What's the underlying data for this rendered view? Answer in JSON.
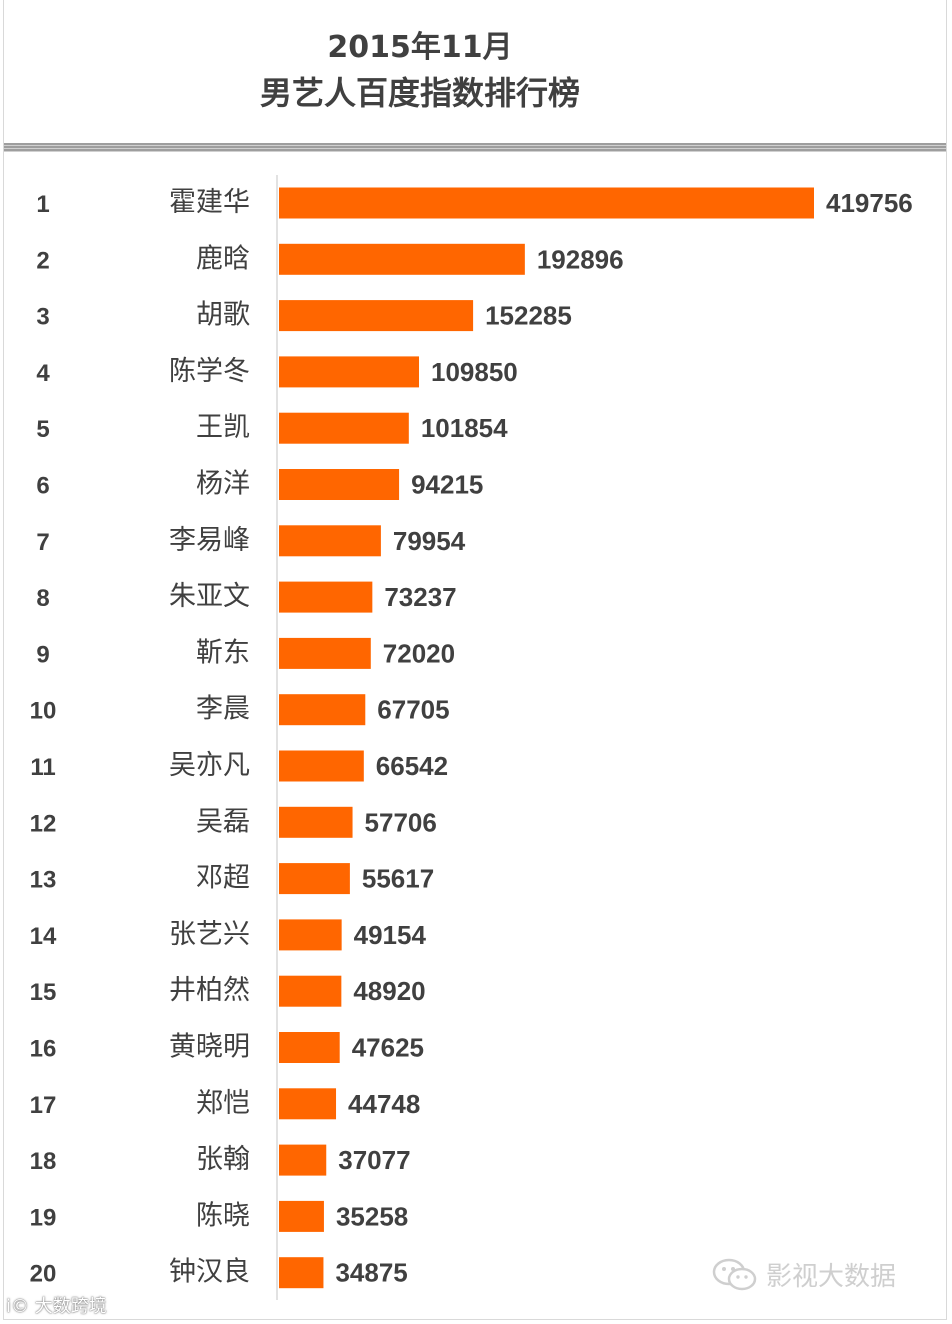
{
  "chart_data": {
    "type": "bar",
    "orientation": "horizontal",
    "title": "2015年11月",
    "subtitle": "男艺人百度指数排行榜",
    "ranks": [
      "1",
      "2",
      "3",
      "4",
      "5",
      "6",
      "7",
      "8",
      "9",
      "10",
      "11",
      "12",
      "13",
      "14",
      "15",
      "16",
      "17",
      "18",
      "19",
      "20"
    ],
    "categories": [
      "霍建华",
      "鹿晗",
      "胡歌",
      "陈学冬",
      "王凯",
      "杨洋",
      "李易峰",
      "朱亚文",
      "靳东",
      "李晨",
      "吴亦凡",
      "吴磊",
      "邓超",
      "张艺兴",
      "井柏然",
      "黄晓明",
      "郑恺",
      "张翰",
      "陈晓",
      "钟汉良"
    ],
    "values": [
      419756,
      192896,
      152285,
      109850,
      101854,
      94215,
      79954,
      73237,
      72020,
      67705,
      66542,
      57706,
      55617,
      49154,
      48920,
      47625,
      44748,
      37077,
      35258,
      34875
    ],
    "bar_color": "#ff6600",
    "text_color": "#404040",
    "data_labels": true,
    "grid": false
  },
  "watermarks": {
    "right_text": "影视大数据",
    "left_text": "大数跨境",
    "left_prefix": "i©"
  },
  "colors": {
    "background": "#ffffff",
    "rule": "#9e9e9e",
    "watermark": "#cfcfcf"
  }
}
